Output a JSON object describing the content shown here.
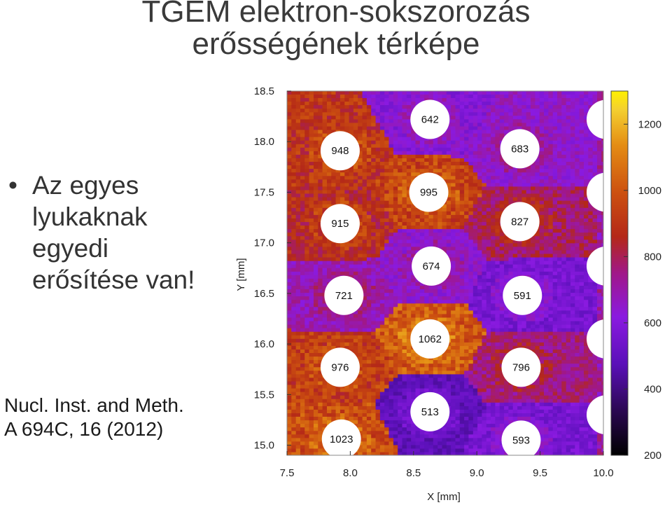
{
  "slide": {
    "title_line1": "TGEM elektron-sokszorozás",
    "title_line2": "erősségének térképe",
    "bullet_text": "Az egyes\nlyukaknak\negyedi\nerősítése van!",
    "citation": "Nucl. Inst. and Meth.\nA 694C, 16 (2012)"
  },
  "chart_data": {
    "type": "heatmap",
    "title": "",
    "xlabel": "X [mm]",
    "ylabel": "Y [mm]",
    "xlim": [
      7.5,
      10.0
    ],
    "ylim": [
      14.9,
      18.5
    ],
    "x_ticks": [
      7.5,
      8.0,
      8.5,
      9.0,
      9.5,
      10.0
    ],
    "y_ticks": [
      15.0,
      15.5,
      16.0,
      16.5,
      17.0,
      17.5,
      18.0,
      18.5
    ],
    "colorbar": {
      "min": 200,
      "max": 1300,
      "ticks": [
        200,
        400,
        600,
        800,
        1000,
        1200
      ]
    },
    "holes": [
      {
        "x": 7.93,
        "y": 15.06,
        "value": 1023
      },
      {
        "x": 7.92,
        "y": 15.77,
        "value": 976
      },
      {
        "x": 7.95,
        "y": 16.48,
        "value": 721
      },
      {
        "x": 7.92,
        "y": 17.19,
        "value": 915
      },
      {
        "x": 7.92,
        "y": 17.91,
        "value": 948
      },
      {
        "x": 8.63,
        "y": 15.33,
        "value": 513
      },
      {
        "x": 8.63,
        "y": 16.05,
        "value": 1062
      },
      {
        "x": 8.64,
        "y": 16.77,
        "value": 674
      },
      {
        "x": 8.62,
        "y": 17.5,
        "value": 995
      },
      {
        "x": 8.63,
        "y": 18.22,
        "value": 642
      },
      {
        "x": 9.35,
        "y": 15.05,
        "value": 593
      },
      {
        "x": 9.35,
        "y": 15.77,
        "value": 796
      },
      {
        "x": 9.36,
        "y": 16.48,
        "value": 591
      },
      {
        "x": 9.34,
        "y": 17.21,
        "value": 827
      },
      {
        "x": 9.34,
        "y": 17.93,
        "value": 683
      }
    ]
  }
}
